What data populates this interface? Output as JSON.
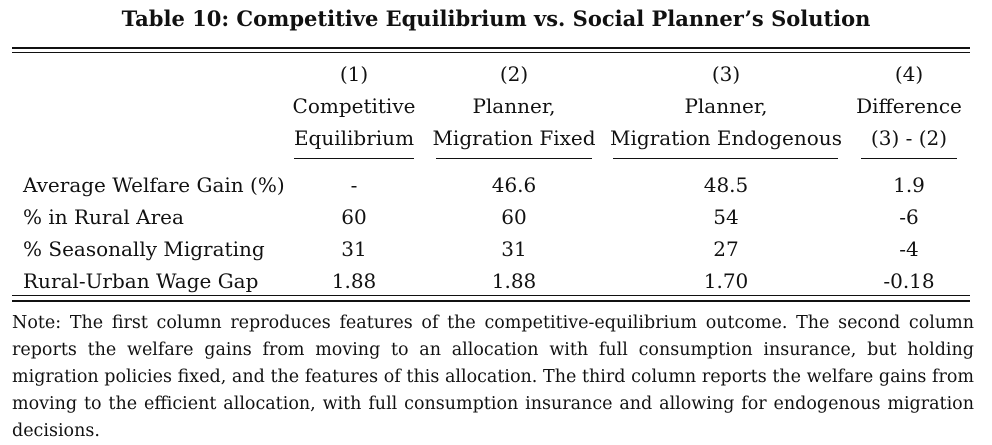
{
  "title": "Table 10: Competitive Equilibrium vs. Social Planner’s Solution",
  "columns": [
    {
      "number": "(1)",
      "line1": "Competitive",
      "line2": "Equilibrium"
    },
    {
      "number": "(2)",
      "line1": "Planner,",
      "line2": "Migration Fixed"
    },
    {
      "number": "(3)",
      "line1": "Planner,",
      "line2": "Migration Endogenous"
    },
    {
      "number": "(4)",
      "line1": "Difference",
      "line2": "(3) - (2)"
    }
  ],
  "rows": [
    {
      "label": "Average Welfare Gain (%)",
      "values": [
        "-",
        "46.6",
        "48.5",
        "1.9"
      ]
    },
    {
      "label": "% in Rural Area",
      "values": [
        "60",
        "60",
        "54",
        "-6"
      ]
    },
    {
      "label": "% Seasonally Migrating",
      "values": [
        "31",
        "31",
        "27",
        "-4"
      ]
    },
    {
      "label": "Rural-Urban Wage Gap",
      "values": [
        "1.88",
        "1.88",
        "1.70",
        "-0.18"
      ]
    }
  ],
  "note": "Note: The first column reproduces features of the competitive-equilibrium outcome. The second column reports the welfare gains from moving to an allocation with full consumption insurance, but holding migration policies fixed, and the features of this allocation. The third column reports the welfare gains from moving to the efficient allocation, with full consumption insurance and allowing for endogenous migration decisions."
}
